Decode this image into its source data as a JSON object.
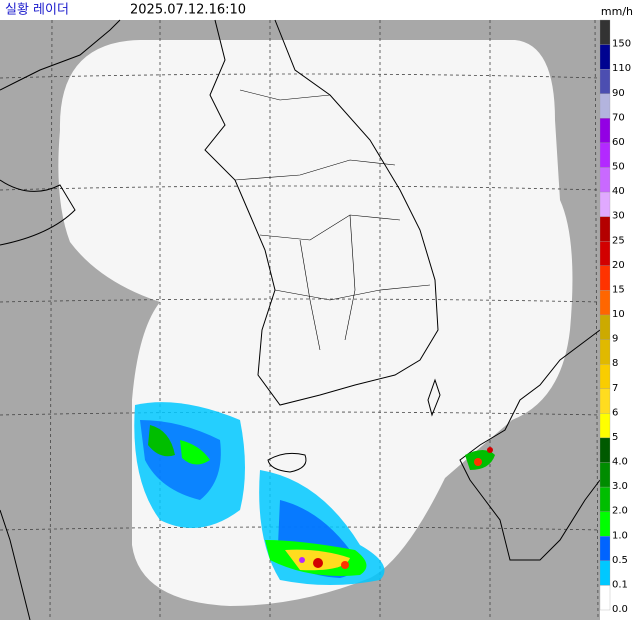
{
  "header": {
    "title": "실황 레이더",
    "timestamp": "2025.07.12.16:10",
    "unit": "mm/h"
  },
  "legend": {
    "levels": [
      {
        "label": "150",
        "color": "#333333"
      },
      {
        "label": "110",
        "color": "#000390"
      },
      {
        "label": "90",
        "color": "#4c4eb1"
      },
      {
        "label": "70",
        "color": "#b3b4de"
      },
      {
        "label": "60",
        "color": "#9300e4"
      },
      {
        "label": "50",
        "color": "#b329ff"
      },
      {
        "label": "40",
        "color": "#c969ff"
      },
      {
        "label": "30",
        "color": "#e0a9ff"
      },
      {
        "label": "25",
        "color": "#b40000"
      },
      {
        "label": "20",
        "color": "#d20000"
      },
      {
        "label": "15",
        "color": "#ff3300"
      },
      {
        "label": "10",
        "color": "#ff6600"
      },
      {
        "label": "9",
        "color": "#ccaa00"
      },
      {
        "label": "8",
        "color": "#e0b900"
      },
      {
        "label": "7",
        "color": "#f9cd00"
      },
      {
        "label": "6",
        "color": "#ffdc1f"
      },
      {
        "label": "5",
        "color": "#ffff00"
      },
      {
        "label": "4.0",
        "color": "#005a00"
      },
      {
        "label": "3.0",
        "color": "#008c00"
      },
      {
        "label": "2.0",
        "color": "#00be00"
      },
      {
        "label": "1.0",
        "color": "#00ff00"
      },
      {
        "label": "0.5",
        "color": "#0064ff"
      },
      {
        "label": "0.1",
        "color": "#00c8ff"
      },
      {
        "label": "0.0",
        "color": "#ffffff"
      }
    ]
  }
}
